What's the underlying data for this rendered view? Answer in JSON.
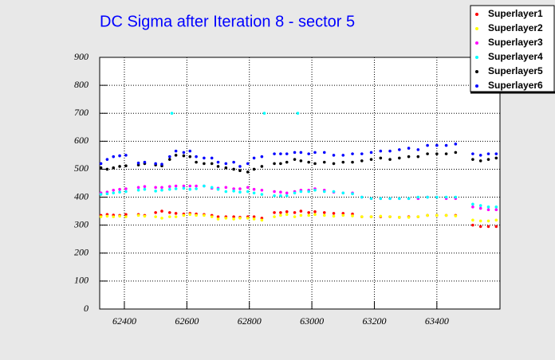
{
  "chart_data": {
    "type": "scatter",
    "title": "DC Sigma after Iteration 8 - sector 5",
    "x": [
      62325,
      62345,
      62365,
      62385,
      62405,
      62445,
      62465,
      62500,
      62520,
      62545,
      62552,
      62565,
      62590,
      62610,
      62630,
      62655,
      62680,
      62700,
      62725,
      62750,
      62770,
      62795,
      62815,
      62840,
      62848,
      62880,
      62900,
      62920,
      62945,
      62955,
      62965,
      62990,
      63010,
      63040,
      63070,
      63100,
      63130,
      63160,
      63190,
      63220,
      63250,
      63280,
      63310,
      63340,
      63370,
      63400,
      63430,
      63460,
      63515,
      63540,
      63565,
      63590
    ],
    "series": [
      {
        "name": "Superlayer1",
        "color": "#ff0000",
        "values": [
          335,
          338,
          336,
          335,
          338,
          338,
          335,
          345,
          350,
          345,
          null,
          342,
          340,
          342,
          340,
          338,
          335,
          330,
          330,
          330,
          328,
          330,
          330,
          325,
          null,
          345,
          345,
          348,
          345,
          null,
          350,
          345,
          348,
          345,
          342,
          342,
          340,
          330,
          330,
          330,
          330,
          328,
          330,
          330,
          335,
          335,
          335,
          335,
          300,
          295,
          295,
          295
        ]
      },
      {
        "name": "Superlayer2",
        "color": "#ffff00",
        "values": [
          330,
          332,
          330,
          332,
          330,
          335,
          332,
          330,
          325,
          330,
          null,
          330,
          335,
          338,
          335,
          335,
          330,
          322,
          325,
          322,
          325,
          325,
          322,
          318,
          null,
          330,
          335,
          338,
          330,
          null,
          335,
          335,
          338,
          335,
          332,
          335,
          333,
          330,
          330,
          332,
          330,
          328,
          328,
          330,
          335,
          335,
          335,
          333,
          318,
          315,
          315,
          318
        ]
      },
      {
        "name": "Superlayer3",
        "color": "#ff00ff",
        "values": [
          415,
          418,
          425,
          428,
          430,
          435,
          438,
          435,
          435,
          438,
          null,
          440,
          440,
          440,
          440,
          440,
          432,
          432,
          435,
          430,
          430,
          435,
          428,
          425,
          null,
          420,
          418,
          415,
          420,
          null,
          425,
          425,
          430,
          425,
          418,
          415,
          415,
          400,
          395,
          395,
          395,
          395,
          395,
          395,
          400,
          400,
          395,
          395,
          365,
          360,
          355,
          355
        ]
      },
      {
        "name": "Superlayer4",
        "color": "#00ffff",
        "values": [
          410,
          412,
          415,
          418,
          420,
          425,
          428,
          422,
          425,
          428,
          700,
          430,
          432,
          428,
          430,
          440,
          435,
          428,
          420,
          422,
          418,
          420,
          415,
          410,
          700,
          405,
          405,
          405,
          415,
          700,
          420,
          420,
          425,
          420,
          420,
          415,
          412,
          400,
          395,
          395,
          395,
          395,
          395,
          400,
          400,
          400,
          400,
          400,
          375,
          370,
          365,
          365
        ]
      },
      {
        "name": "Superlayer5",
        "color": "#000000",
        "values": [
          505,
          500,
          505,
          510,
          512,
          515,
          520,
          515,
          512,
          535,
          null,
          550,
          548,
          545,
          525,
          520,
          520,
          510,
          505,
          500,
          495,
          490,
          500,
          510,
          null,
          520,
          520,
          525,
          535,
          null,
          530,
          525,
          520,
          525,
          520,
          525,
          525,
          530,
          535,
          540,
          535,
          540,
          545,
          545,
          555,
          555,
          555,
          560,
          535,
          530,
          535,
          540
        ]
      },
      {
        "name": "Superlayer6",
        "color": "#0000ff",
        "values": [
          520,
          535,
          545,
          548,
          550,
          522,
          525,
          520,
          518,
          545,
          null,
          565,
          560,
          565,
          545,
          540,
          540,
          525,
          520,
          525,
          510,
          520,
          540,
          545,
          null,
          555,
          555,
          555,
          560,
          null,
          560,
          555,
          560,
          560,
          550,
          550,
          555,
          555,
          560,
          565,
          565,
          570,
          575,
          570,
          585,
          585,
          585,
          590,
          555,
          550,
          555,
          555
        ]
      }
    ],
    "xlim": [
      62321,
      63602
    ],
    "xticks": [
      62400,
      62600,
      62800,
      63000,
      63200,
      63400
    ],
    "ylim": [
      0,
      900
    ],
    "yticks": [
      0,
      100,
      200,
      300,
      400,
      500,
      600,
      700,
      800,
      900
    ],
    "grid": true,
    "legend": "top-right"
  }
}
